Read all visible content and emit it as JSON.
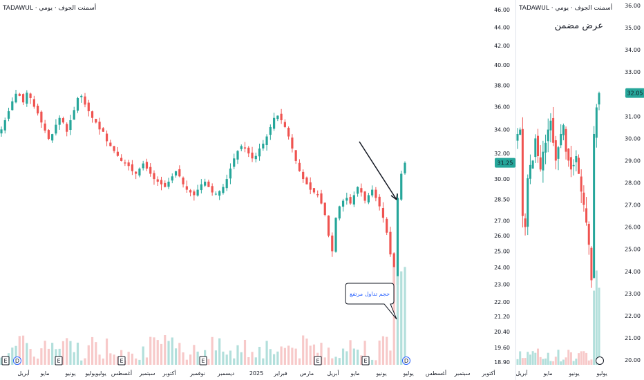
{
  "left_chart": {
    "title": "TADAWUL · أسمنت الجوف · يومي",
    "price_axis": [
      "46.00",
      "44.00",
      "42.00",
      "40.00",
      "38.00",
      "36.00",
      "34.00",
      "32.00",
      "30.00",
      "28.50",
      "27.00",
      "26.00",
      "25.00",
      "24.00",
      "23.00",
      "22.00",
      "21.20",
      "20.40",
      "19.60",
      "18.90"
    ],
    "current_price": "31.25",
    "time_axis": [
      "أبريل",
      "مايو",
      "يونيو",
      "يوليو",
      "يوليو",
      "أغسطس",
      "سبتمبر",
      "أكتوبر",
      "نوفمبر",
      "ديسمبر",
      "2025",
      "فبراير",
      "مارس",
      "أبريل",
      "مايو",
      "يونيو",
      "يوليو",
      "أغسطس",
      "سبتمبر",
      "أكتوبر"
    ],
    "annotation_arrow": "",
    "callout": "حجم تداول مرتفع",
    "event_markers": [
      "E",
      "D",
      "E",
      "E",
      "E",
      "E",
      "E",
      "D"
    ]
  },
  "right_chart": {
    "title": "TADAWUL · أسمنت الجوف · يومي",
    "subtitle": "عرض مضمن",
    "price_axis": [
      "36.00",
      "35.00",
      "34.00",
      "33.00",
      "32.00",
      "31.00",
      "30.00",
      "29.00",
      "28.00",
      "27.00",
      "26.00",
      "25.00",
      "24.00",
      "23.00",
      "22.00",
      "21.00",
      "20.00"
    ],
    "current_price": "32.05",
    "time_axis": [
      "أبريل",
      "مايو",
      "يونيو",
      "يوليو"
    ]
  },
  "colors": {
    "up": "#26a69a",
    "down": "#ef5350",
    "volume_up": "#b2dfdb",
    "volume_down": "#f7c9c9",
    "current_price_bg": "#26a69a",
    "callout_border": "#2962ff"
  },
  "chart_data": [
    {
      "type": "candlestick",
      "title": "TADAWUL · أسمنت الجوف · يومي",
      "xlabel": "",
      "ylabel": "",
      "ylim": [
        18.9,
        46.0
      ],
      "scale": "log",
      "close_series": [
        34.0,
        34.8,
        35.6,
        36.5,
        37.2,
        37.0,
        36.4,
        37.3,
        36.8,
        36.0,
        35.4,
        34.6,
        33.9,
        33.2,
        33.6,
        34.4,
        35.0,
        34.6,
        33.8,
        34.8,
        35.7,
        36.8,
        37.0,
        36.2,
        35.6,
        35.0,
        34.6,
        34.0,
        33.8,
        33.0,
        32.6,
        32.2,
        31.8,
        31.4,
        31.2,
        31.0,
        30.6,
        30.4,
        30.8,
        31.2,
        30.8,
        30.4,
        30.0,
        29.8,
        29.6,
        29.4,
        29.8,
        30.2,
        30.6,
        30.2,
        29.6,
        29.2,
        29.0,
        28.8,
        29.2,
        29.6,
        29.8,
        29.4,
        29.0,
        28.9,
        29.1,
        29.4,
        30.0,
        30.8,
        31.6,
        32.2,
        32.6,
        32.4,
        32.0,
        31.6,
        31.8,
        32.4,
        32.8,
        33.4,
        34.2,
        35.0,
        35.2,
        34.8,
        34.2,
        33.4,
        32.4,
        31.4,
        30.6,
        30.0,
        29.6,
        29.2,
        29.0,
        28.8,
        28.2,
        27.4,
        26.0,
        25.0,
        27.2,
        28.0,
        28.4,
        28.6,
        28.2,
        28.8,
        29.4,
        29.0,
        28.4,
        28.8,
        29.2,
        28.6,
        28.0,
        27.2,
        26.2,
        24.8,
        23.0,
        28.6,
        30.4,
        31.25
      ],
      "callout_text": "حجم تداول مرتفع"
    },
    {
      "type": "candlestick",
      "title": "TADAWUL · أسمنت الجوف · يومي",
      "xlabel": "",
      "ylabel": "",
      "ylim": [
        20.0,
        36.0
      ],
      "close_series": [
        30.2,
        30.4,
        26.5,
        26.0,
        28.2,
        28.8,
        29.0,
        30.0,
        29.2,
        28.6,
        29.4,
        29.8,
        30.4,
        30.8,
        29.8,
        29.0,
        29.6,
        30.2,
        30.6,
        29.4,
        29.0,
        28.6,
        28.8,
        29.2,
        28.4,
        27.6,
        27.0,
        26.2,
        25.2,
        23.6,
        30.2,
        31.4,
        32.05
      ]
    }
  ]
}
